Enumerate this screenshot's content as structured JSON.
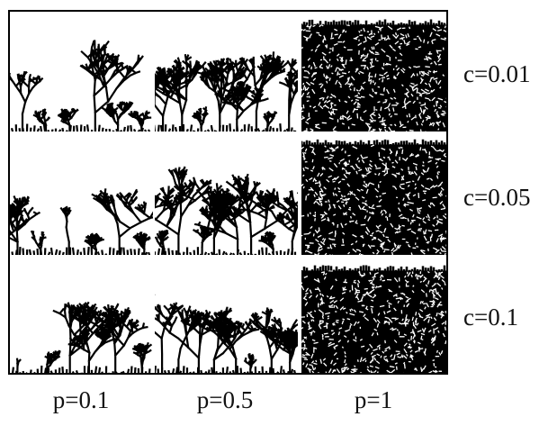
{
  "row_labels": [
    "c=0.01",
    "c=0.05",
    "c=0.1"
  ],
  "column_labels": [
    "p=0.1",
    "p=0.5",
    "p=1"
  ]
}
